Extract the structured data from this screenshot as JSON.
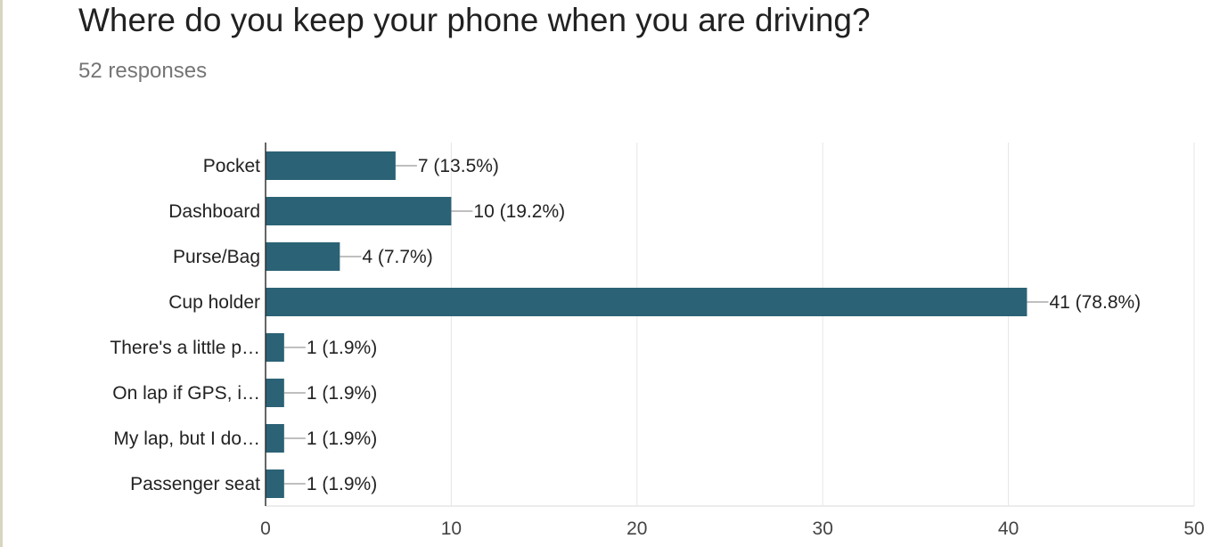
{
  "header": {
    "title": "Where do you keep your phone when you are driving?",
    "responses": "52 responses"
  },
  "colors": {
    "bar": "#2b6275",
    "grid": "#e6e6e6",
    "axis": "#333333",
    "leader": "#999999"
  },
  "chart_data": {
    "type": "bar",
    "orientation": "horizontal",
    "title": "Where do you keep your phone when you are driving?",
    "subtitle": "52 responses",
    "categories": [
      "Pocket",
      "Dashboard",
      "Purse/Bag",
      "Cup holder",
      "There's a little p…",
      "On lap if GPS, i…",
      "My lap, but I do…",
      "Passenger seat"
    ],
    "values": [
      7,
      10,
      4,
      41,
      1,
      1,
      1,
      1
    ],
    "data_labels": [
      "7 (13.5%)",
      "10 (19.2%)",
      "4 (7.7%)",
      "41 (78.8%)",
      "1 (1.9%)",
      "1 (1.9%)",
      "1 (1.9%)",
      "1 (1.9%)"
    ],
    "xlim": [
      0,
      50
    ],
    "xticks": [
      0,
      10,
      20,
      30,
      40,
      50
    ],
    "xtick_labels": [
      "0",
      "10",
      "20",
      "30",
      "40",
      "50"
    ],
    "grid": true,
    "legend": "none"
  }
}
